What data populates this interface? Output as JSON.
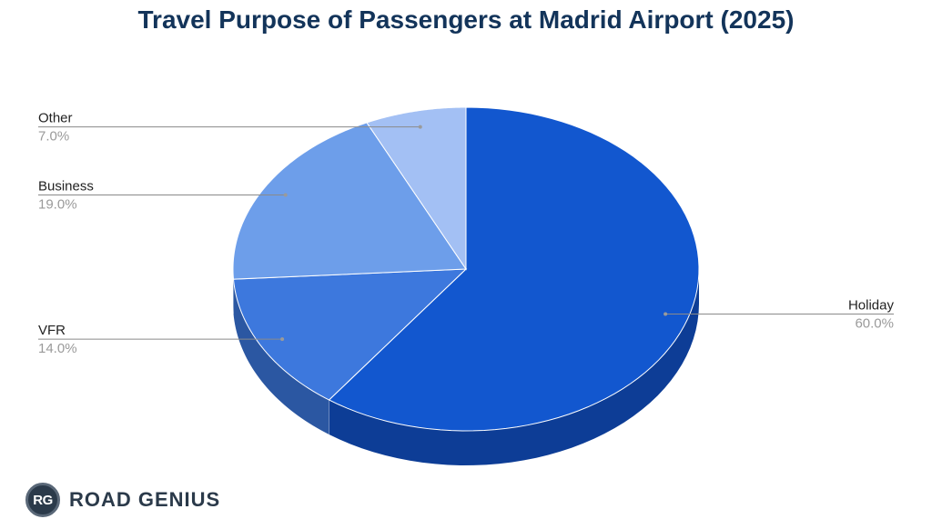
{
  "chart_data": {
    "type": "pie",
    "title": "Travel Purpose of Passengers at Madrid Airport (2025)",
    "slices": [
      {
        "label": "Holiday",
        "value": 60.0,
        "value_label": "60.0%",
        "color": "#1257cf",
        "side_color": "#0d3d96"
      },
      {
        "label": "VFR",
        "value": 14.0,
        "value_label": "14.0%",
        "color": "#3d78dd",
        "side_color": "#2b57a2"
      },
      {
        "label": "Business",
        "value": 19.0,
        "value_label": "19.0%",
        "color": "#6d9eea",
        "side_color": "#4f75b0"
      },
      {
        "label": "Other",
        "value": 7.0,
        "value_label": "7.0%",
        "color": "#a3c0f4",
        "side_color": "#7a92bc"
      }
    ],
    "legend": "none",
    "style": "3d"
  },
  "brand": {
    "logo_text": "RG",
    "name": "ROAD GENIUS"
  }
}
